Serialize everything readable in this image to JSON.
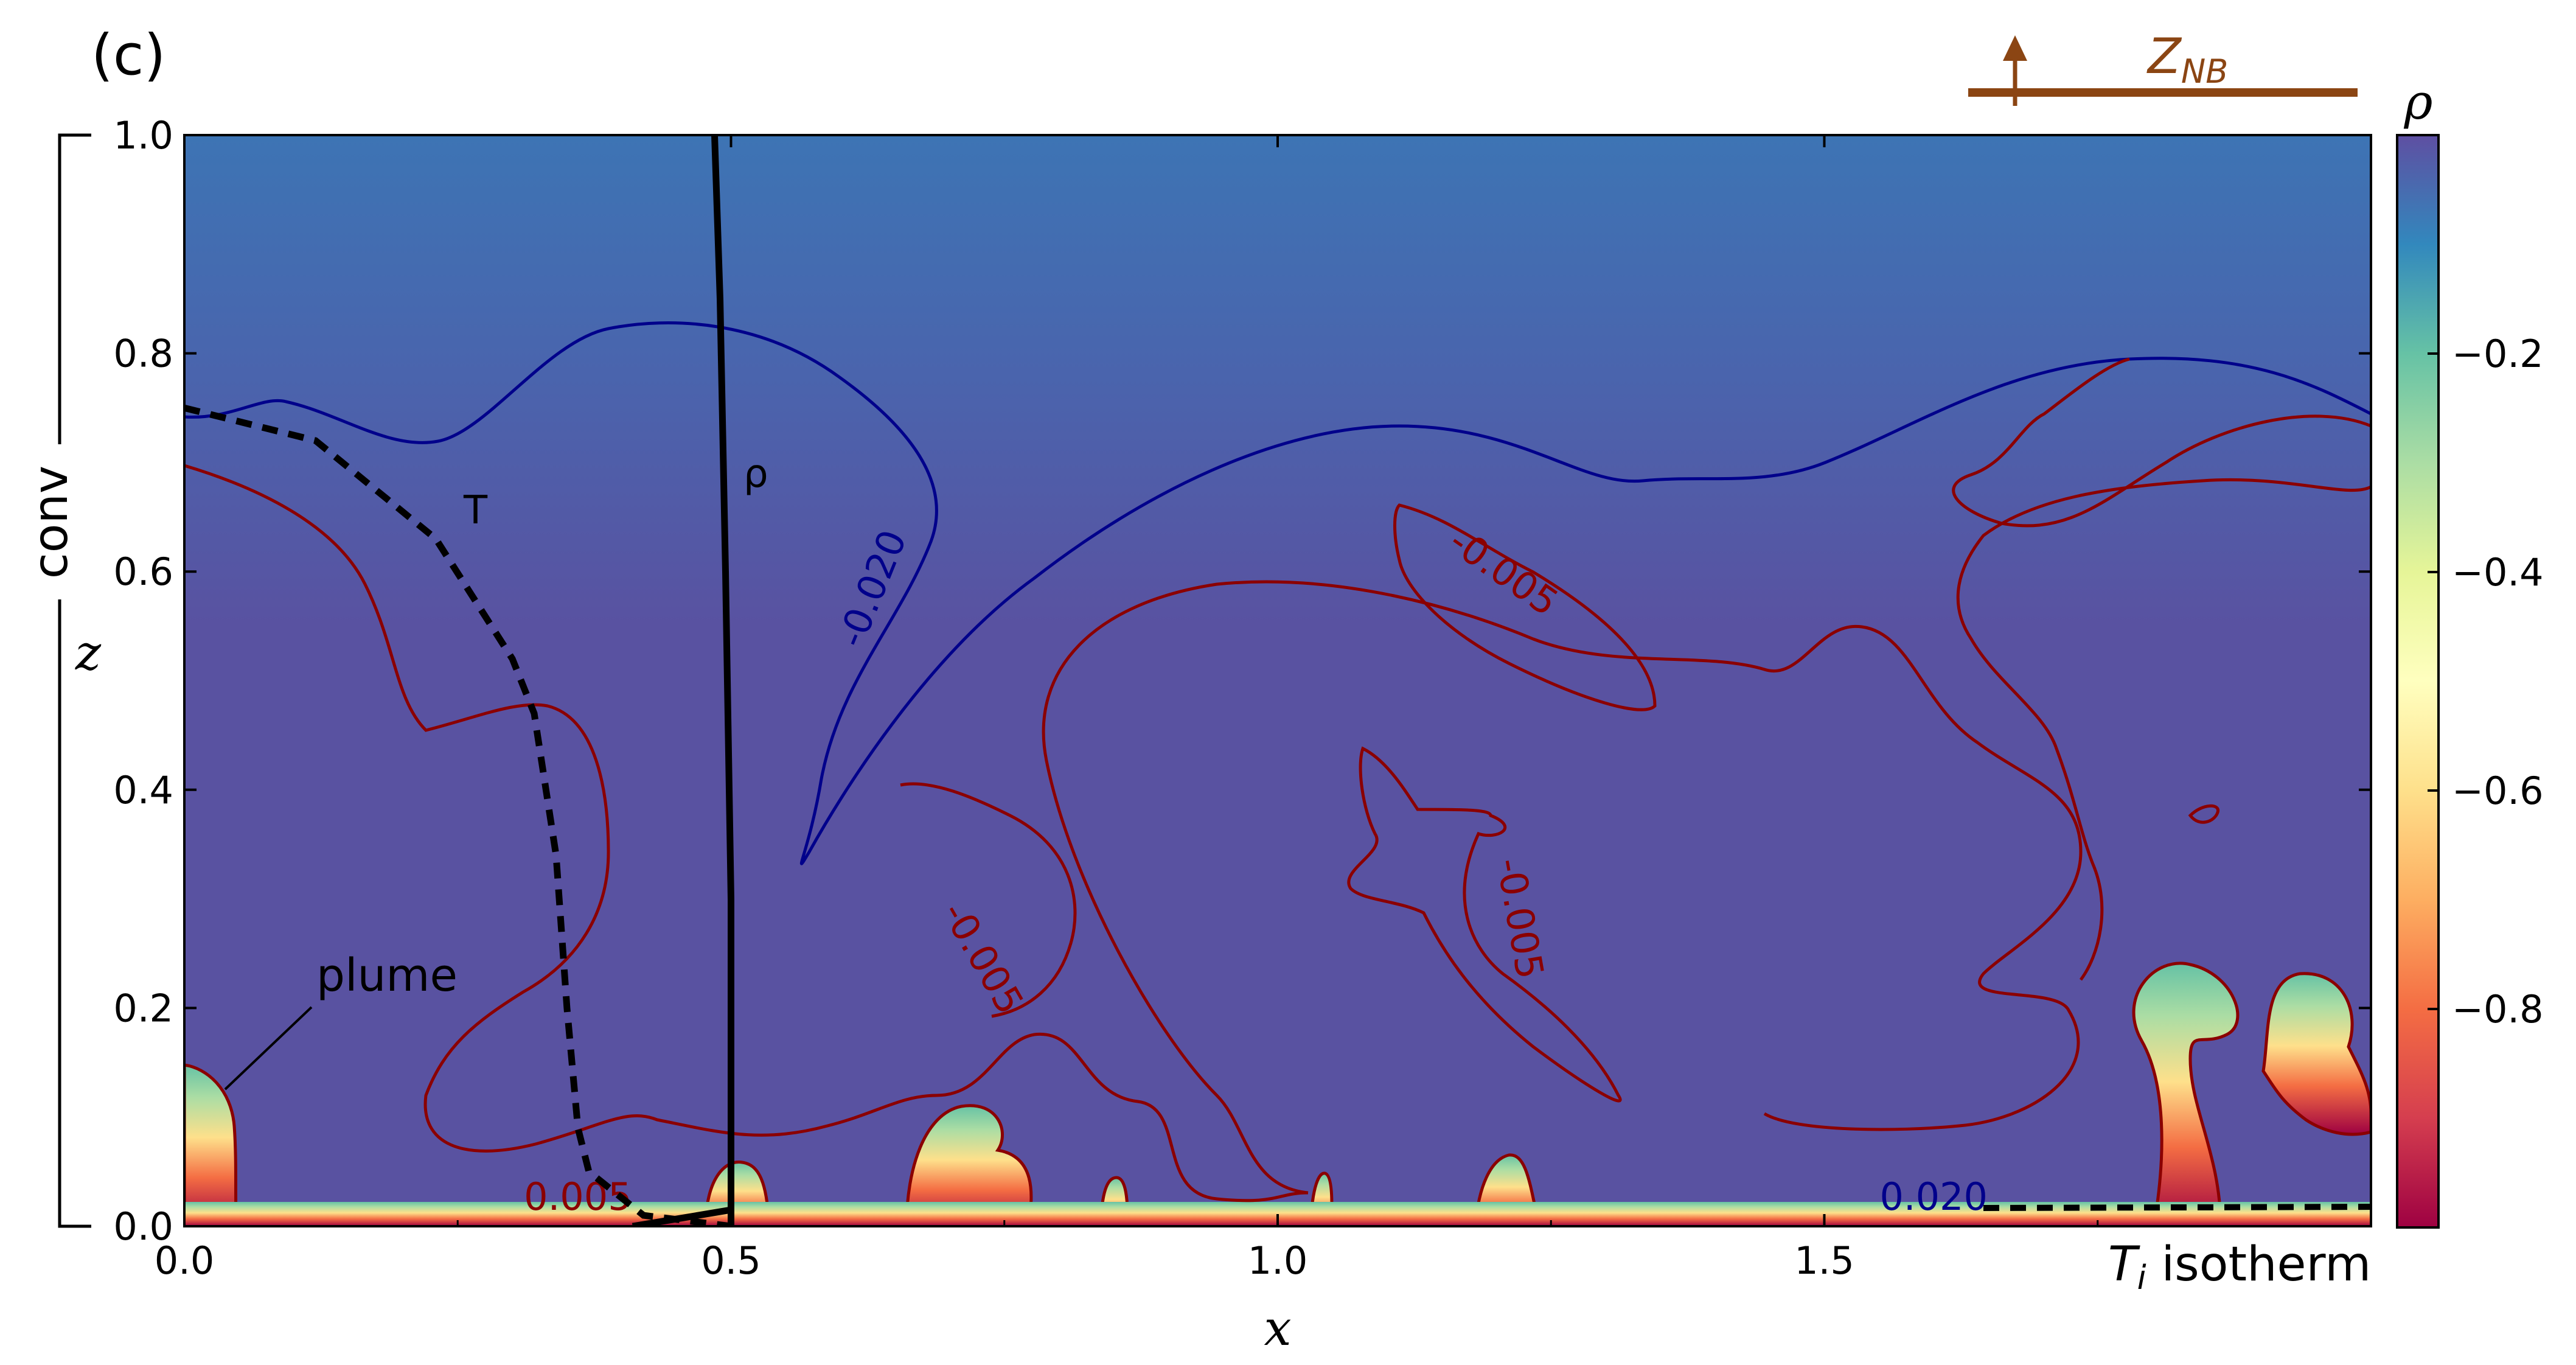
{
  "chart_data": {
    "type": "heatmap",
    "panel_label": "(c)",
    "xlabel": "x",
    "ylabel": "z",
    "xlim": [
      0.0,
      2.0
    ],
    "ylim": [
      0.0,
      1.0
    ],
    "x_ticks": [
      0.0,
      0.5,
      1.0,
      1.5
    ],
    "x_tick_labels": [
      "0.0",
      "0.5",
      "1.0",
      "1.5"
    ],
    "y_ticks": [
      0.0,
      0.2,
      0.4,
      0.6,
      0.8,
      1.0
    ],
    "y_tick_labels": [
      "0.0",
      "0.2",
      "0.4",
      "0.6",
      "0.8",
      "1.0"
    ],
    "colorbar": {
      "label": "ρ",
      "range": [
        -1.0,
        0.0
      ],
      "ticks": [
        -0.8,
        -0.6,
        -0.4,
        -0.2
      ],
      "tick_labels": [
        "−0.8",
        "−0.6",
        "−0.4",
        "−0.2"
      ],
      "colormap": "Spectral",
      "stops": [
        "#9e0142",
        "#d53e4f",
        "#f46d43",
        "#fdae61",
        "#fee08b",
        "#ffffbf",
        "#e6f598",
        "#abdda4",
        "#66c2a5",
        "#3288bd",
        "#5e4fa2"
      ]
    },
    "field_colors": {
      "bulk": "#5952a1",
      "top": "#3d74b4",
      "boundary_layer": [
        "#9e0142",
        "#f46d43",
        "#fee08b",
        "#e6f598",
        "#66c2a5"
      ]
    },
    "contour_labels": [
      {
        "text": "-0.020",
        "x": 0.64,
        "z": 0.58,
        "color": "#00008b",
        "angle": -68
      },
      {
        "text": "-0.005",
        "x": 1.2,
        "z": 0.59,
        "color": "#8b0000",
        "angle": 35
      },
      {
        "text": "-0.005",
        "x": 0.72,
        "z": 0.24,
        "color": "#8b0000",
        "angle": 60
      },
      {
        "text": "-0.005",
        "x": 1.21,
        "z": 0.28,
        "color": "#8b0000",
        "angle": 80
      },
      {
        "text": "0.005",
        "x": 0.36,
        "z": 0.015,
        "color": "#8b0000",
        "angle": 0
      },
      {
        "text": "0.020",
        "x": 1.6,
        "z": 0.015,
        "color": "#00008b",
        "angle": 0
      }
    ],
    "profiles": [
      {
        "name": "T",
        "style": "dashed",
        "x": [
          0.0,
          0.12,
          0.23,
          0.3,
          0.32,
          0.34,
          0.35,
          0.36,
          0.37,
          0.42,
          0.5
        ],
        "z": [
          0.75,
          0.72,
          0.63,
          0.52,
          0.47,
          0.34,
          0.2,
          0.09,
          0.05,
          0.01,
          0.0
        ]
      },
      {
        "name": "ρ",
        "style": "solid",
        "x": [
          0.485,
          0.49,
          0.495,
          0.5,
          0.5,
          0.5
        ],
        "z": [
          1.0,
          0.85,
          0.6,
          0.3,
          0.05,
          0.0
        ]
      }
    ],
    "annotations": {
      "plume": "plume",
      "conv": "conv",
      "ti_isotherm": "T",
      "ti_sub": "i",
      "ti_suffix": " isotherm",
      "znb": "Z",
      "znb_sub": "NB"
    },
    "colors": {
      "contour_blue": "#00008b",
      "contour_red": "#8b0000",
      "znb": "#8b4513",
      "profile": "#000000"
    }
  }
}
